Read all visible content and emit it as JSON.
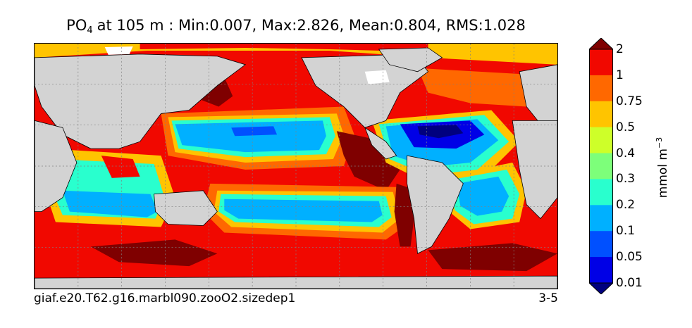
{
  "title": {
    "variable": "PO",
    "variable_sub": "4",
    "rest": "at 105 m : Min:0.007, Max:2.826, Mean:0.804, RMS:1.028"
  },
  "caption_left": "giaf.e20.T62.g16.marbl090.zooO2.sizedep1",
  "caption_right": "3-5",
  "colorbar": {
    "levels": [
      "0.01",
      "0.05",
      "0.1",
      "0.2",
      "0.3",
      "0.4",
      "0.5",
      "0.75",
      "1",
      "2"
    ],
    "colors": [
      "#00007f",
      "#0000e6",
      "#0050ff",
      "#00b0ff",
      "#29ffce",
      "#7dff7a",
      "#ceff29",
      "#ffc400",
      "#ff6800",
      "#f10800",
      "#7f0000"
    ],
    "units_base": "mmol m",
    "units_exp": "−3",
    "extend": "both"
  },
  "map_colors": {
    "land": "#d3d3d3",
    "no_data": "#ffffff",
    "grid": "#808080",
    "coast": "#000000"
  }
}
